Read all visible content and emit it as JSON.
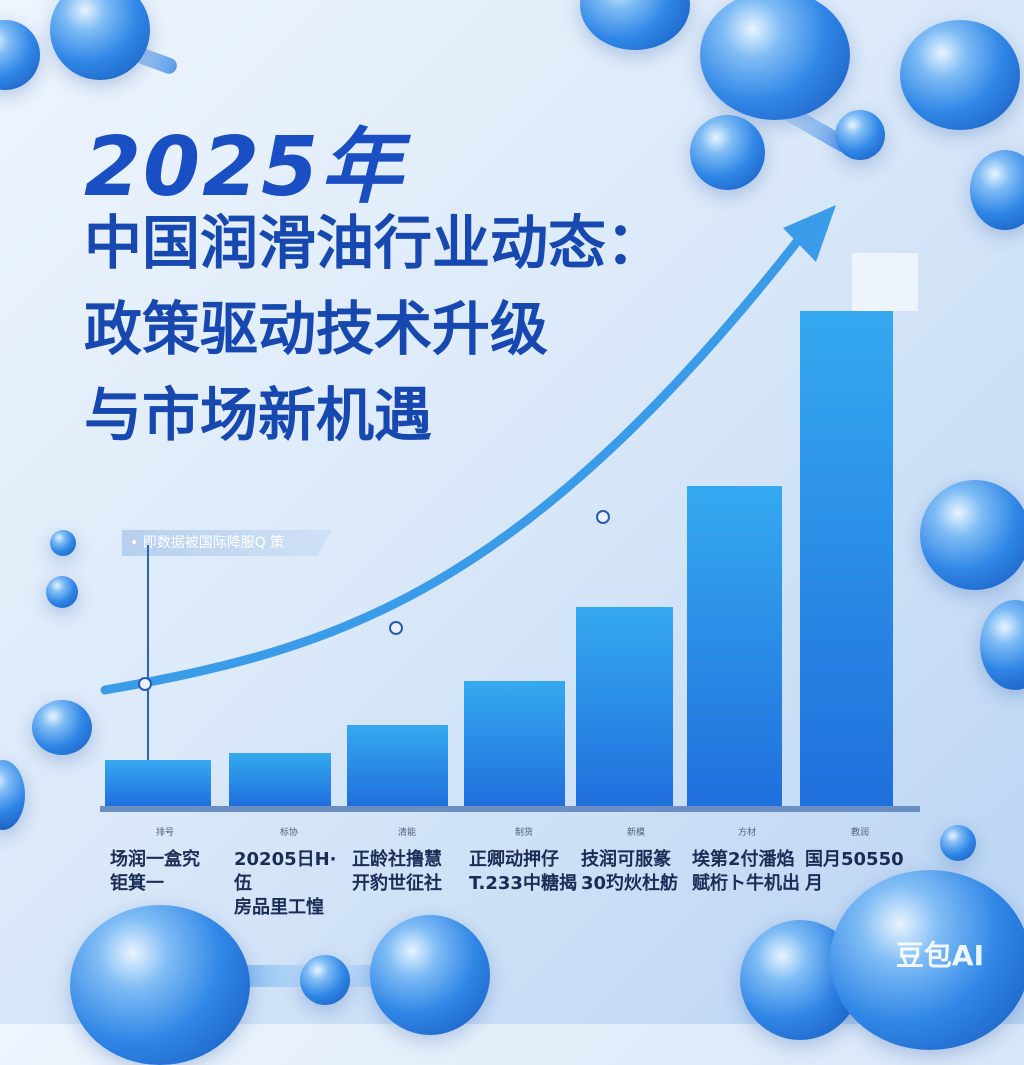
{
  "title": {
    "year": "2025年",
    "lines": [
      "中国润滑油行业动态：",
      "政策驱动技术升级",
      "与市场新机遇"
    ]
  },
  "legend_text": "• 即数据被国际降服Q 策",
  "colors": {
    "title": "#1748b0",
    "bar": "#1f7de0",
    "bar_light": "#35a9f0",
    "arrow": "#3a9be8"
  },
  "chart_data": {
    "type": "bar",
    "title": "",
    "xlabel": "",
    "ylabel": "",
    "grid": false,
    "trend_arrow": true,
    "categories": [
      {
        "small": "排号",
        "label": [
          "场润一盒究",
          "钜箕一"
        ]
      },
      {
        "small": "标协",
        "label": [
          "20205日H·伍",
          "房品里工惶"
        ]
      },
      {
        "small": "清能",
        "label": [
          "正龄社撸慧",
          "开豹世征社"
        ]
      },
      {
        "small": "制货",
        "label": [
          "正卿动押仔",
          "T.233中糖揭"
        ]
      },
      {
        "small": "新模",
        "label": [
          "技润可服篆",
          "30玓炏杜舫"
        ]
      },
      {
        "small": "方材",
        "label": [
          "埃第2付潘焰",
          "赋桁ト牛机出"
        ]
      },
      {
        "small": "教润",
        "label": [
          "国月50550月",
          ""
        ]
      }
    ],
    "values": [
      46,
      53,
      81,
      125,
      199,
      320,
      495
    ]
  },
  "watermark": "豆包AI"
}
